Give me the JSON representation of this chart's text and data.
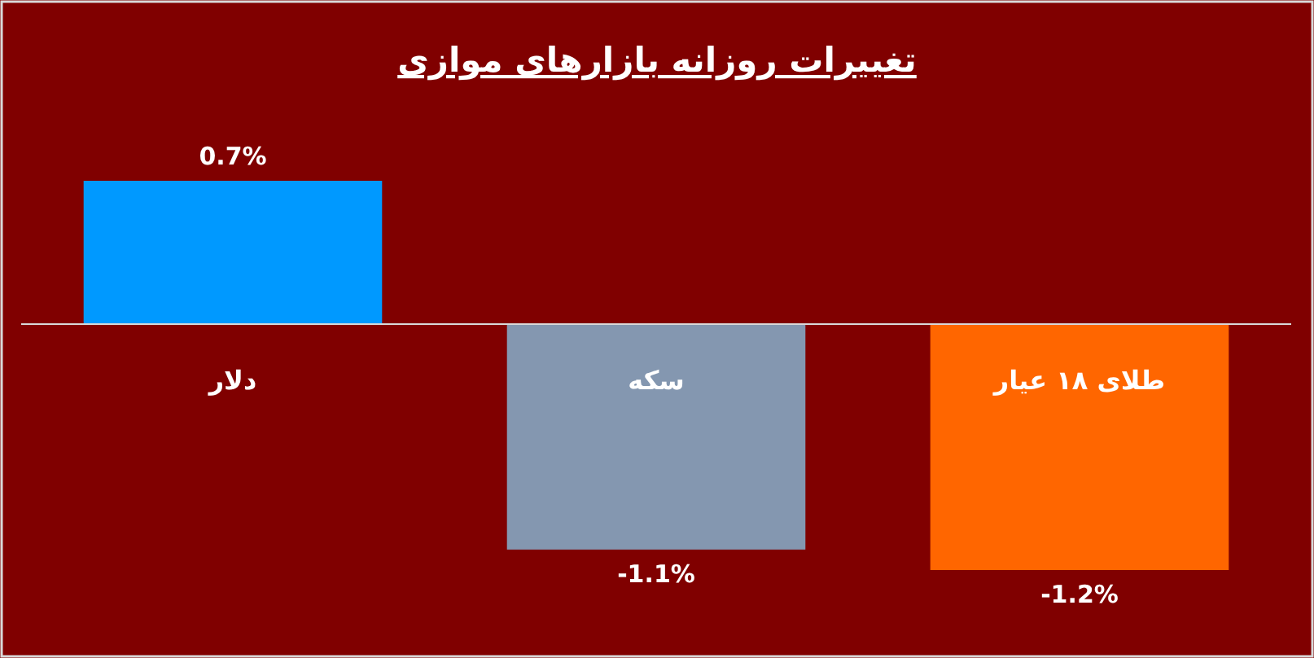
{
  "chart_data": {
    "type": "bar",
    "title": "تغییرات روزانه بازارهای موازی",
    "categories": [
      "دلار",
      "سکه",
      "طلای ۱۸ عیار"
    ],
    "values": [
      0.7,
      -1.1,
      -1.2
    ],
    "colors": [
      "#0099ff",
      "#8497b0",
      "#ff6600"
    ],
    "value_labels": [
      "0.7%",
      "-1.1%",
      "-1.2%"
    ]
  }
}
